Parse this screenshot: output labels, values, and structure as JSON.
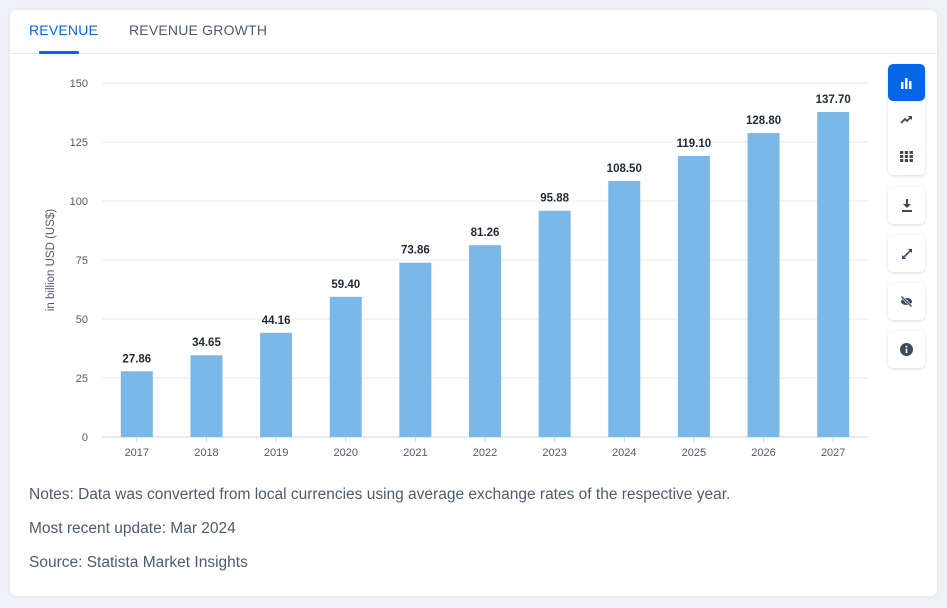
{
  "tabs": [
    {
      "label": "REVENUE",
      "active": true
    },
    {
      "label": "REVENUE GROWTH",
      "active": false
    }
  ],
  "chart_data": {
    "type": "bar",
    "title": "",
    "xlabel": "",
    "ylabel": "in billion USD (US$)",
    "categories": [
      "2017",
      "2018",
      "2019",
      "2020",
      "2021",
      "2022",
      "2023",
      "2024",
      "2025",
      "2026",
      "2027"
    ],
    "values": [
      27.86,
      34.65,
      44.16,
      59.4,
      73.86,
      81.26,
      95.88,
      108.5,
      119.1,
      128.8,
      137.7
    ],
    "value_labels": [
      "27.86",
      "34.65",
      "44.16",
      "59.40",
      "73.86",
      "81.26",
      "95.88",
      "108.50",
      "119.10",
      "128.80",
      "137.70"
    ],
    "ylim": [
      0,
      150
    ],
    "yticks": [
      0,
      25,
      50,
      75,
      100,
      125,
      150
    ],
    "grid": true,
    "bar_color": "#7ab8ea"
  },
  "notes": {
    "note": "Notes: Data was converted from local currencies using average exchange rates of the respective year.",
    "update": "Most recent update: Mar 2024",
    "source": "Source: Statista Market Insights"
  },
  "toolbar": {
    "icons": [
      "bar-chart-icon",
      "trend-line-icon",
      "table-grid-icon",
      "download-icon",
      "expand-icon",
      "hide-icon",
      "info-icon"
    ],
    "accent": "#0666e5",
    "icon_color": "#3b4a5e"
  }
}
